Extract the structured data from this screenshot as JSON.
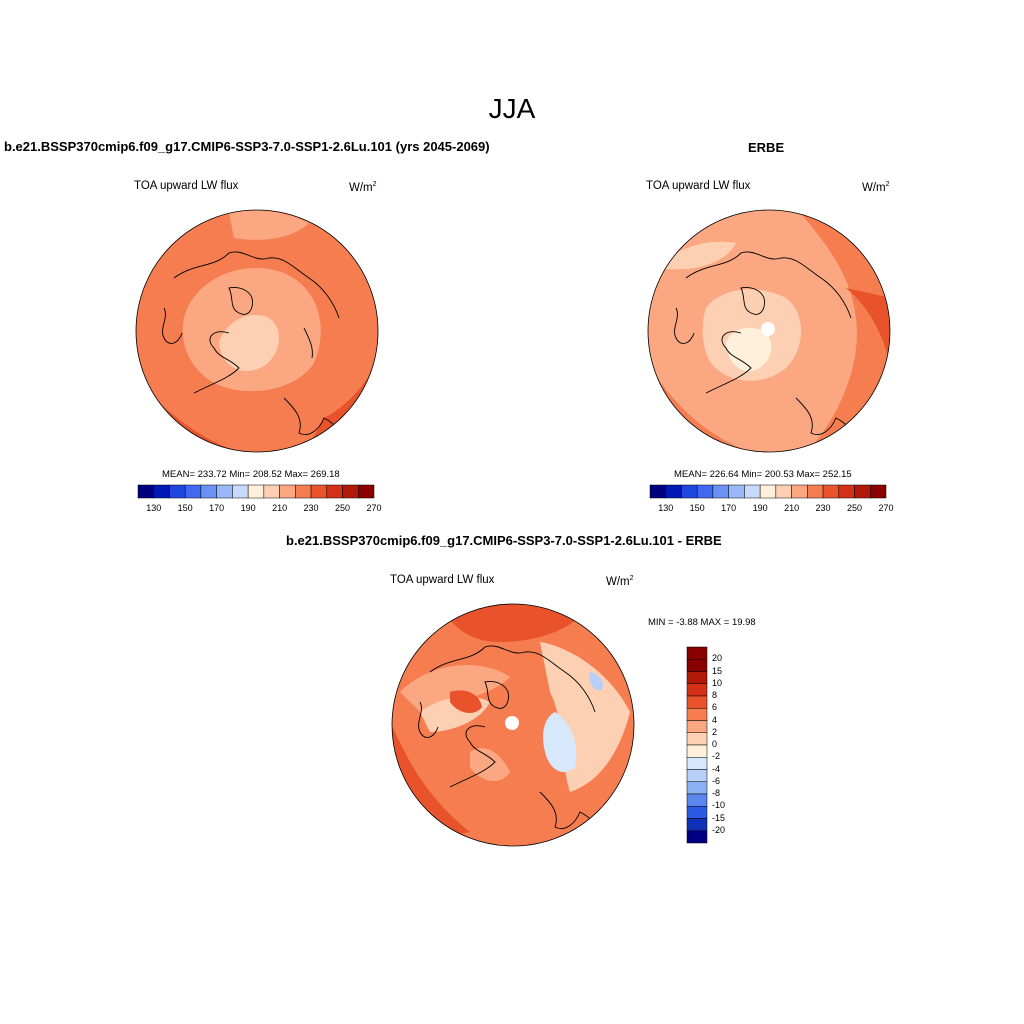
{
  "main_title": "JJA",
  "panels": [
    {
      "title": "b.e21.BSSP370cmip6.f09_g17.CMIP6-SSP3-7.0-SSP1-2.6Lu.101 (yrs 2045-2069)",
      "variable": "TOA upward LW flux",
      "units": "W/m",
      "units_sup": "2",
      "stats": "MEAN= 233.72  Min= 208.52  Max= 269.18",
      "colorbar_ticks": [
        "130",
        "150",
        "170",
        "190",
        "210",
        "230",
        "250",
        "270"
      ]
    },
    {
      "title": "ERBE",
      "variable": "TOA upward LW flux",
      "units": "W/m",
      "units_sup": "2",
      "stats": "MEAN= 226.64  Min= 200.53  Max= 252.15",
      "colorbar_ticks": [
        "130",
        "150",
        "170",
        "190",
        "210",
        "230",
        "250",
        "270"
      ]
    },
    {
      "title": "b.e21.BSSP370cmip6.f09_g17.CMIP6-SSP3-7.0-SSP1-2.6Lu.101 - ERBE",
      "variable": "TOA upward LW flux",
      "units": "W/m",
      "units_sup": "2",
      "minmax": "MIN =  -3.88 MAX =  19.98",
      "colorbar_labels": [
        "20",
        "15",
        "10",
        "8",
        "6",
        "4",
        "2",
        "0",
        "-2",
        "-4",
        "-6",
        "-8",
        "-10",
        "-15",
        "-20"
      ]
    }
  ],
  "colors": {
    "abs_scale": [
      "#00007f",
      "#0019b2",
      "#1f47e0",
      "#4068f0",
      "#6a92f5",
      "#99b8f8",
      "#c6dafc",
      "#fff0dc",
      "#fdd0b4",
      "#fba882",
      "#f57d50",
      "#e9532c",
      "#d43018",
      "#b01808",
      "#8a0000"
    ],
    "diff_scale": [
      "#8a0000",
      "#b01808",
      "#d43018",
      "#e9532c",
      "#f57d50",
      "#fba882",
      "#fdd0b4",
      "#fff0dc",
      "#d8e8fc",
      "#b8d0f8",
      "#8cb0f4",
      "#5a86ee",
      "#2c5ae4",
      "#1030b8",
      "#000080"
    ]
  }
}
